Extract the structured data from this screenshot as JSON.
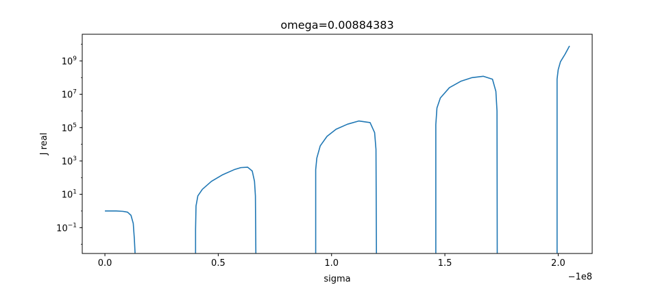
{
  "chart_data": {
    "type": "line",
    "title": "omega=0.00884383",
    "xlabel": "sigma",
    "ylabel": "J real",
    "x_offset_text": "−1e8",
    "yscale": "log",
    "xlim": [
      -0.1,
      2.15
    ],
    "ylim_log10": [
      -2.55,
      10.6
    ],
    "grid": false,
    "xticks": [
      {
        "value": 0.0,
        "label": "0.0"
      },
      {
        "value": 0.5,
        "label": "0.5"
      },
      {
        "value": 1.0,
        "label": "1.0"
      },
      {
        "value": 1.5,
        "label": "1.5"
      },
      {
        "value": 2.0,
        "label": "2.0"
      }
    ],
    "yticks": [
      {
        "exp": -1,
        "base": "10",
        "sup": "−1"
      },
      {
        "exp": 1,
        "base": "10",
        "sup": "1"
      },
      {
        "exp": 3,
        "base": "10",
        "sup": "3"
      },
      {
        "exp": 5,
        "base": "10",
        "sup": "5"
      },
      {
        "exp": 7,
        "base": "10",
        "sup": "7"
      },
      {
        "exp": 9,
        "base": "10",
        "sup": "9"
      }
    ],
    "series": [
      {
        "color": "#1f77b4",
        "segments": [
          [
            [
              0.0,
              1.0
            ],
            [
              0.05,
              1.0
            ],
            [
              0.08,
              0.95
            ],
            [
              0.1,
              0.85
            ],
            [
              0.115,
              0.55
            ],
            [
              0.125,
              0.18
            ],
            [
              0.13,
              0.02
            ],
            [
              0.133,
              0.003
            ]
          ],
          [
            [
              0.4,
              0.003
            ],
            [
              0.4,
              0.08
            ],
            [
              0.402,
              2.0
            ],
            [
              0.41,
              8.0
            ],
            [
              0.43,
              20.0
            ],
            [
              0.47,
              60.0
            ],
            [
              0.52,
              150.0
            ],
            [
              0.57,
              300.0
            ],
            [
              0.6,
              400.0
            ],
            [
              0.63,
              420.0
            ],
            [
              0.65,
              250.0
            ],
            [
              0.66,
              60.0
            ],
            [
              0.664,
              8.0
            ],
            [
              0.666,
              0.003
            ]
          ],
          [
            [
              0.93,
              0.003
            ],
            [
              0.93,
              300.0
            ],
            [
              0.935,
              1500.0
            ],
            [
              0.95,
              8000.0
            ],
            [
              0.98,
              30000.0
            ],
            [
              1.02,
              80000.0
            ],
            [
              1.07,
              160000.0
            ],
            [
              1.12,
              250000.0
            ],
            [
              1.17,
              200000.0
            ],
            [
              1.19,
              50000.0
            ],
            [
              1.196,
              5000.0
            ],
            [
              1.198,
              0.003
            ]
          ],
          [
            [
              1.46,
              0.003
            ],
            [
              1.46,
              150000.0
            ],
            [
              1.465,
              1500000.0
            ],
            [
              1.48,
              6000000.0
            ],
            [
              1.52,
              25000000.0
            ],
            [
              1.57,
              60000000.0
            ],
            [
              1.62,
              100000000.0
            ],
            [
              1.67,
              120000000.0
            ],
            [
              1.71,
              80000000.0
            ],
            [
              1.725,
              15000000.0
            ],
            [
              1.73,
              1000000.0
            ],
            [
              1.731,
              0.003
            ]
          ],
          [
            [
              1.995,
              0.003
            ],
            [
              1.995,
              80000000.0
            ],
            [
              2.0,
              300000000.0
            ],
            [
              2.01,
              900000000.0
            ],
            [
              2.03,
              2500000000.0
            ],
            [
              2.05,
              8000000000.0
            ]
          ]
        ]
      }
    ]
  }
}
